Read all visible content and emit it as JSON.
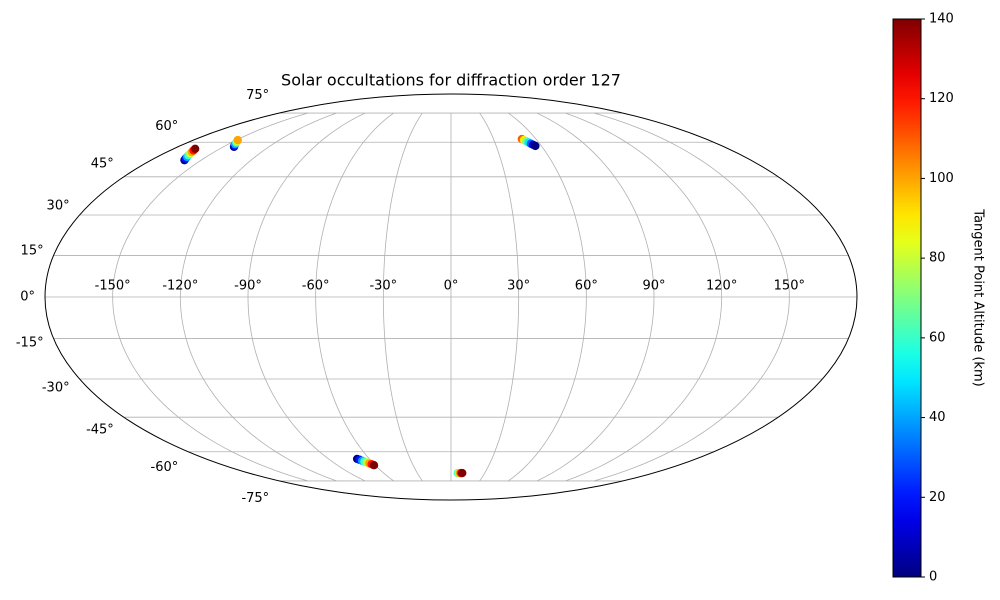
{
  "chart_data": {
    "type": "scatter",
    "projection": "mollweide",
    "title": "Solar occultations for diffraction order 127",
    "grid": true,
    "x": [
      -160,
      -160.9,
      -161.7,
      -162.6,
      -163.4,
      -164.3,
      -165.1,
      -166,
      -143,
      -144.2,
      -145.4,
      -146.6,
      -147.8,
      -149,
      50,
      51,
      52,
      53,
      54,
      55,
      56,
      -69,
      -67.9,
      -66.7,
      -65.6,
      -64.4,
      -63.3,
      -62.1,
      -61,
      6,
      7,
      8,
      9,
      10
    ],
    "y": [
      52,
      52.7,
      53.4,
      54.1,
      54.9,
      55.6,
      56.3,
      57,
      57.9,
      58.5,
      59.1,
      59.8,
      60.4,
      61,
      61.5,
      61,
      60.5,
      59.9,
      59.3,
      58.8,
      58.3,
      -63.4,
      -63.8,
      -64.3,
      -64.7,
      -65.1,
      -65.6,
      -66,
      -66.5,
      -70.6,
      -70.6,
      -70.6,
      -70.6,
      -70.6
    ],
    "values": [
      0,
      20,
      40,
      60,
      80,
      100,
      120,
      140,
      0,
      20,
      40,
      60,
      80,
      100,
      110,
      90,
      70,
      50,
      30,
      10,
      0,
      0,
      20,
      40,
      60,
      80,
      100,
      120,
      140,
      60,
      80,
      100,
      120,
      140
    ],
    "xticks": [
      {
        "value": -150,
        "label": "-150°"
      },
      {
        "value": -120,
        "label": "-120°"
      },
      {
        "value": -90,
        "label": "-90°"
      },
      {
        "value": -60,
        "label": "-60°"
      },
      {
        "value": -30,
        "label": "-30°"
      },
      {
        "value": 0,
        "label": "0°"
      },
      {
        "value": 30,
        "label": "30°"
      },
      {
        "value": 60,
        "label": "60°"
      },
      {
        "value": 90,
        "label": "90°"
      },
      {
        "value": 120,
        "label": "120°"
      },
      {
        "value": 150,
        "label": "150°"
      }
    ],
    "yticks": [
      {
        "value": -75,
        "label": "-75°"
      },
      {
        "value": -60,
        "label": "-60°"
      },
      {
        "value": -45,
        "label": "-45°"
      },
      {
        "value": -30,
        "label": "-30°"
      },
      {
        "value": -15,
        "label": "-15°"
      },
      {
        "value": 0,
        "label": "0°"
      },
      {
        "value": 15,
        "label": "15°"
      },
      {
        "value": 30,
        "label": "30°"
      },
      {
        "value": 45,
        "label": "45°"
      },
      {
        "value": 60,
        "label": "60°"
      },
      {
        "value": 75,
        "label": "75°"
      }
    ],
    "colorbar": {
      "label": "Tangent Point Altitude (km)",
      "colormap": "jet",
      "lim": [
        0,
        140
      ],
      "ticks": [
        0,
        20,
        40,
        60,
        80,
        100,
        120,
        140
      ]
    }
  }
}
